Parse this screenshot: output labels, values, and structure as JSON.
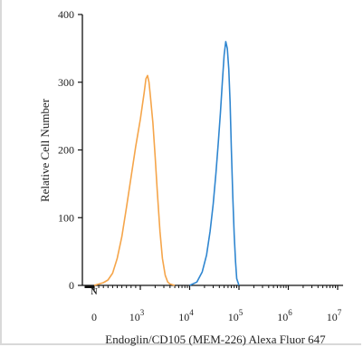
{
  "chart_data": {
    "type": "area",
    "xlabel": "Endoglin/CD105 (MEM-226) Alexa Fluor 647",
    "ylabel": "Relative Cell Number",
    "xscale": "biexponential",
    "ylim": [
      0,
      400
    ],
    "y_ticks": [
      0,
      100,
      200,
      300,
      400
    ],
    "x_ticks": [
      {
        "value": 0,
        "label": "0",
        "exp": ""
      },
      {
        "value": 1000,
        "label": "10",
        "exp": "3"
      },
      {
        "value": 10000,
        "label": "10",
        "exp": "4"
      },
      {
        "value": 100000,
        "label": "10",
        "exp": "5"
      },
      {
        "value": 1000000,
        "label": "10",
        "exp": "6"
      },
      {
        "value": 10000000,
        "label": "10",
        "exp": "7"
      }
    ],
    "grid": false,
    "series": [
      {
        "color": "#f5a54a",
        "x": [
          0,
          100,
          200,
          300,
          400,
          500,
          600,
          700,
          800,
          900,
          1000,
          1200,
          1300,
          1400,
          1500,
          1600,
          1800,
          2000,
          2200,
          2500,
          2800,
          3200,
          3600,
          4000,
          5000
        ],
        "y": [
          0,
          2,
          4,
          8,
          18,
          40,
          72,
          115,
          160,
          205,
          245,
          285,
          305,
          310,
          300,
          280,
          240,
          190,
          140,
          80,
          40,
          15,
          5,
          2,
          0
        ]
      },
      {
        "color": "#2f86d0",
        "x": [
          10000,
          14000,
          18000,
          22000,
          26000,
          30000,
          34000,
          38000,
          42000,
          46000,
          50000,
          54000,
          58000,
          62000,
          66000,
          70000,
          75000,
          80000,
          85000,
          90000,
          100000
        ],
        "y": [
          0,
          5,
          20,
          45,
          80,
          120,
          165,
          210,
          255,
          300,
          340,
          360,
          350,
          320,
          270,
          200,
          130,
          75,
          35,
          10,
          0
        ]
      }
    ]
  }
}
